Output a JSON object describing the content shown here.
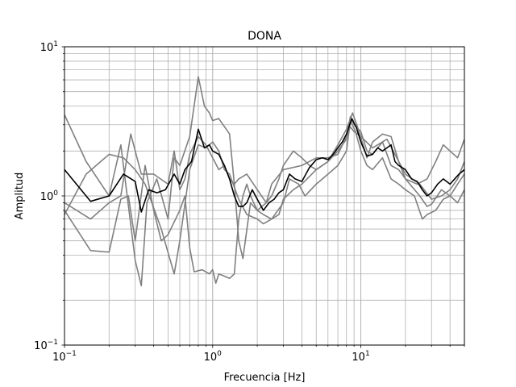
{
  "chart_data": {
    "type": "line",
    "title": "DONA",
    "xlabel": "Frecuencia [Hz]",
    "ylabel": "Amplitud",
    "xscale": "log",
    "yscale": "log",
    "xlim": [
      0.1,
      50
    ],
    "ylim": [
      0.1,
      10
    ],
    "grid": "both",
    "legend": "none",
    "x_tick_labels": [
      {
        "value": 0.1,
        "base": "10",
        "exp": "−1"
      },
      {
        "value": 1,
        "base": "10",
        "exp": "0"
      },
      {
        "value": 10,
        "base": "10",
        "exp": "1"
      }
    ],
    "y_tick_labels": [
      {
        "value": 0.1,
        "base": "10",
        "exp": "−1"
      },
      {
        "value": 1,
        "base": "10",
        "exp": "0"
      },
      {
        "value": 10,
        "base": "10",
        "exp": "1"
      }
    ],
    "series_color_gray": "#808080",
    "series_color_black": "#000000",
    "series": [
      {
        "color": "#808080",
        "points": [
          [
            0.1,
            3.5
          ],
          [
            0.14,
            1.7
          ],
          [
            0.2,
            1.0
          ],
          [
            0.24,
            2.2
          ],
          [
            0.3,
            0.37
          ],
          [
            0.33,
            0.25
          ],
          [
            0.36,
            0.9
          ],
          [
            0.42,
            1.3
          ],
          [
            0.5,
            0.7
          ],
          [
            0.55,
            1.8
          ],
          [
            0.6,
            1.6
          ],
          [
            0.7,
            2.5
          ],
          [
            0.8,
            6.3
          ],
          [
            0.88,
            4.0
          ],
          [
            0.95,
            3.6
          ],
          [
            1.0,
            3.2
          ],
          [
            1.1,
            3.3
          ],
          [
            1.3,
            2.6
          ],
          [
            1.4,
            1.2
          ],
          [
            1.5,
            0.5
          ],
          [
            1.6,
            0.38
          ],
          [
            1.8,
            0.9
          ],
          [
            2.0,
            0.8
          ],
          [
            2.2,
            0.75
          ],
          [
            2.5,
            0.7
          ],
          [
            2.8,
            0.75
          ],
          [
            3.0,
            0.95
          ],
          [
            3.5,
            1.1
          ],
          [
            4.0,
            1.2
          ],
          [
            4.5,
            1.35
          ],
          [
            5.0,
            1.5
          ],
          [
            6.0,
            1.7
          ],
          [
            7.0,
            2.0
          ],
          [
            8.0,
            2.4
          ],
          [
            8.5,
            3.4
          ],
          [
            9.0,
            3.0
          ],
          [
            10.0,
            2.7
          ],
          [
            11.0,
            2.0
          ],
          [
            12.0,
            1.9
          ],
          [
            14.0,
            2.3
          ],
          [
            16.0,
            1.6
          ],
          [
            18.0,
            1.5
          ],
          [
            20.0,
            1.3
          ],
          [
            25.0,
            1.0
          ],
          [
            28.0,
            0.85
          ],
          [
            30.0,
            0.88
          ],
          [
            35.0,
            1.1
          ],
          [
            40.0,
            1.0
          ],
          [
            45.0,
            1.2
          ],
          [
            50.0,
            1.4
          ]
        ]
      },
      {
        "color": "#808080",
        "points": [
          [
            0.1,
            0.8
          ],
          [
            0.15,
            0.43
          ],
          [
            0.2,
            0.42
          ],
          [
            0.24,
            0.95
          ],
          [
            0.27,
            1.0
          ],
          [
            0.3,
            0.5
          ],
          [
            0.35,
            1.6
          ],
          [
            0.4,
            0.8
          ],
          [
            0.45,
            0.5
          ],
          [
            0.5,
            0.55
          ],
          [
            0.6,
            0.8
          ],
          [
            0.65,
            1.0
          ],
          [
            0.7,
            0.45
          ],
          [
            0.75,
            0.31
          ],
          [
            0.85,
            0.32
          ],
          [
            0.95,
            0.3
          ],
          [
            1.0,
            0.32
          ],
          [
            1.05,
            0.26
          ],
          [
            1.1,
            0.3
          ],
          [
            1.2,
            0.29
          ],
          [
            1.3,
            0.28
          ],
          [
            1.4,
            0.3
          ],
          [
            1.5,
            0.7
          ],
          [
            1.6,
            1.0
          ],
          [
            1.7,
            1.2
          ],
          [
            1.8,
            1.0
          ],
          [
            2.0,
            0.8
          ],
          [
            2.3,
            0.9
          ],
          [
            2.5,
            1.2
          ],
          [
            3.0,
            1.5
          ],
          [
            4.0,
            1.6
          ],
          [
            5.0,
            1.8
          ],
          [
            6.0,
            1.8
          ],
          [
            7.0,
            1.9
          ],
          [
            8.0,
            2.5
          ],
          [
            8.5,
            2.9
          ],
          [
            9.0,
            2.7
          ],
          [
            10.0,
            2.5
          ],
          [
            12.0,
            2.1
          ],
          [
            15.0,
            2.4
          ],
          [
            20.0,
            1.4
          ],
          [
            25.0,
            1.2
          ],
          [
            30.0,
            0.95
          ],
          [
            35.0,
            1.0
          ],
          [
            40.0,
            1.1
          ],
          [
            45.0,
            1.3
          ],
          [
            50.0,
            1.7
          ]
        ]
      },
      {
        "color": "#808080",
        "points": [
          [
            0.1,
            0.9
          ],
          [
            0.15,
            0.7
          ],
          [
            0.2,
            0.9
          ],
          [
            0.24,
            1.0
          ],
          [
            0.28,
            2.6
          ],
          [
            0.33,
            1.4
          ],
          [
            0.4,
            1.4
          ],
          [
            0.5,
            1.2
          ],
          [
            0.55,
            2.0
          ],
          [
            0.6,
            1.1
          ],
          [
            0.65,
            1.3
          ],
          [
            0.7,
            1.9
          ],
          [
            0.8,
            2.5
          ],
          [
            0.9,
            2.2
          ],
          [
            1.0,
            1.8
          ],
          [
            1.1,
            1.5
          ],
          [
            1.2,
            1.6
          ],
          [
            1.3,
            1.3
          ],
          [
            1.4,
            1.2
          ],
          [
            1.5,
            1.3
          ],
          [
            1.7,
            1.4
          ],
          [
            2.0,
            1.1
          ],
          [
            2.3,
            0.9
          ],
          [
            2.5,
            1.0
          ],
          [
            2.8,
            1.3
          ],
          [
            3.0,
            1.6
          ],
          [
            3.5,
            2.0
          ],
          [
            4.0,
            1.8
          ],
          [
            4.5,
            1.6
          ],
          [
            5.0,
            1.5
          ],
          [
            6.0,
            1.7
          ],
          [
            7.0,
            2.2
          ],
          [
            8.0,
            2.8
          ],
          [
            8.8,
            3.6
          ],
          [
            9.5,
            2.9
          ],
          [
            10.5,
            2.1
          ],
          [
            11.0,
            1.8
          ],
          [
            12.0,
            2.3
          ],
          [
            14.0,
            2.6
          ],
          [
            16.0,
            2.5
          ],
          [
            18.0,
            1.7
          ],
          [
            20.0,
            1.3
          ],
          [
            24.0,
            1.2
          ],
          [
            28.0,
            1.3
          ],
          [
            32.0,
            1.7
          ],
          [
            36.0,
            2.2
          ],
          [
            40.0,
            2.0
          ],
          [
            45.0,
            1.8
          ],
          [
            50.0,
            2.4
          ]
        ]
      },
      {
        "color": "#808080",
        "points": [
          [
            0.1,
            0.75
          ],
          [
            0.14,
            1.4
          ],
          [
            0.2,
            1.9
          ],
          [
            0.25,
            1.8
          ],
          [
            0.3,
            1.5
          ],
          [
            0.35,
            1.2
          ],
          [
            0.45,
            0.6
          ],
          [
            0.55,
            0.3
          ],
          [
            0.6,
            0.5
          ],
          [
            0.7,
            1.5
          ],
          [
            0.8,
            2.2
          ],
          [
            0.9,
            2.1
          ],
          [
            1.0,
            2.3
          ],
          [
            1.1,
            2.0
          ],
          [
            1.2,
            1.5
          ],
          [
            1.3,
            1.4
          ],
          [
            1.5,
            0.95
          ],
          [
            1.7,
            0.75
          ],
          [
            2.0,
            0.7
          ],
          [
            2.2,
            0.65
          ],
          [
            2.5,
            0.7
          ],
          [
            3.0,
            0.9
          ],
          [
            3.3,
            1.3
          ],
          [
            3.8,
            1.2
          ],
          [
            4.2,
            1.0
          ],
          [
            5.0,
            1.2
          ],
          [
            6.0,
            1.4
          ],
          [
            7.0,
            1.6
          ],
          [
            8.0,
            2.0
          ],
          [
            8.5,
            3.2
          ],
          [
            9.2,
            2.7
          ],
          [
            10.0,
            2.0
          ],
          [
            11.0,
            1.6
          ],
          [
            12.0,
            1.5
          ],
          [
            14.0,
            1.8
          ],
          [
            16.0,
            1.3
          ],
          [
            18.0,
            1.2
          ],
          [
            20.0,
            1.1
          ],
          [
            23.0,
            1.0
          ],
          [
            26.0,
            0.7
          ],
          [
            28.0,
            0.75
          ],
          [
            32.0,
            0.8
          ],
          [
            36.0,
            0.95
          ],
          [
            40.0,
            1.0
          ],
          [
            45.0,
            0.9
          ],
          [
            50.0,
            1.1
          ]
        ]
      },
      {
        "color": "#000000",
        "points": [
          [
            0.1,
            1.5
          ],
          [
            0.15,
            0.92
          ],
          [
            0.2,
            1.0
          ],
          [
            0.25,
            1.4
          ],
          [
            0.3,
            1.25
          ],
          [
            0.33,
            0.78
          ],
          [
            0.37,
            1.1
          ],
          [
            0.42,
            1.05
          ],
          [
            0.48,
            1.1
          ],
          [
            0.55,
            1.4
          ],
          [
            0.6,
            1.2
          ],
          [
            0.65,
            1.5
          ],
          [
            0.72,
            1.7
          ],
          [
            0.8,
            2.8
          ],
          [
            0.88,
            2.1
          ],
          [
            0.95,
            2.2
          ],
          [
            1.0,
            2.0
          ],
          [
            1.1,
            1.9
          ],
          [
            1.2,
            1.6
          ],
          [
            1.3,
            1.3
          ],
          [
            1.4,
            1.0
          ],
          [
            1.5,
            0.85
          ],
          [
            1.6,
            0.85
          ],
          [
            1.7,
            0.9
          ],
          [
            1.85,
            1.1
          ],
          [
            2.0,
            0.95
          ],
          [
            2.2,
            0.8
          ],
          [
            2.4,
            0.9
          ],
          [
            2.6,
            0.95
          ],
          [
            2.8,
            1.05
          ],
          [
            3.0,
            1.1
          ],
          [
            3.3,
            1.4
          ],
          [
            3.6,
            1.3
          ],
          [
            4.0,
            1.25
          ],
          [
            4.5,
            1.55
          ],
          [
            5.0,
            1.75
          ],
          [
            5.5,
            1.8
          ],
          [
            6.0,
            1.75
          ],
          [
            6.5,
            1.9
          ],
          [
            7.0,
            2.1
          ],
          [
            7.5,
            2.3
          ],
          [
            8.0,
            2.6
          ],
          [
            8.7,
            3.3
          ],
          [
            9.3,
            2.9
          ],
          [
            10.0,
            2.3
          ],
          [
            11.0,
            1.85
          ],
          [
            12.0,
            1.9
          ],
          [
            13.0,
            2.1
          ],
          [
            14.0,
            2.0
          ],
          [
            15.0,
            2.1
          ],
          [
            16.0,
            2.2
          ],
          [
            17.0,
            1.7
          ],
          [
            18.0,
            1.6
          ],
          [
            20.0,
            1.5
          ],
          [
            22.0,
            1.3
          ],
          [
            24.0,
            1.25
          ],
          [
            26.0,
            1.1
          ],
          [
            28.0,
            1.0
          ],
          [
            30.0,
            1.05
          ],
          [
            33.0,
            1.2
          ],
          [
            36.0,
            1.3
          ],
          [
            40.0,
            1.2
          ],
          [
            43.0,
            1.3
          ],
          [
            46.0,
            1.4
          ],
          [
            50.0,
            1.5
          ]
        ]
      }
    ]
  }
}
